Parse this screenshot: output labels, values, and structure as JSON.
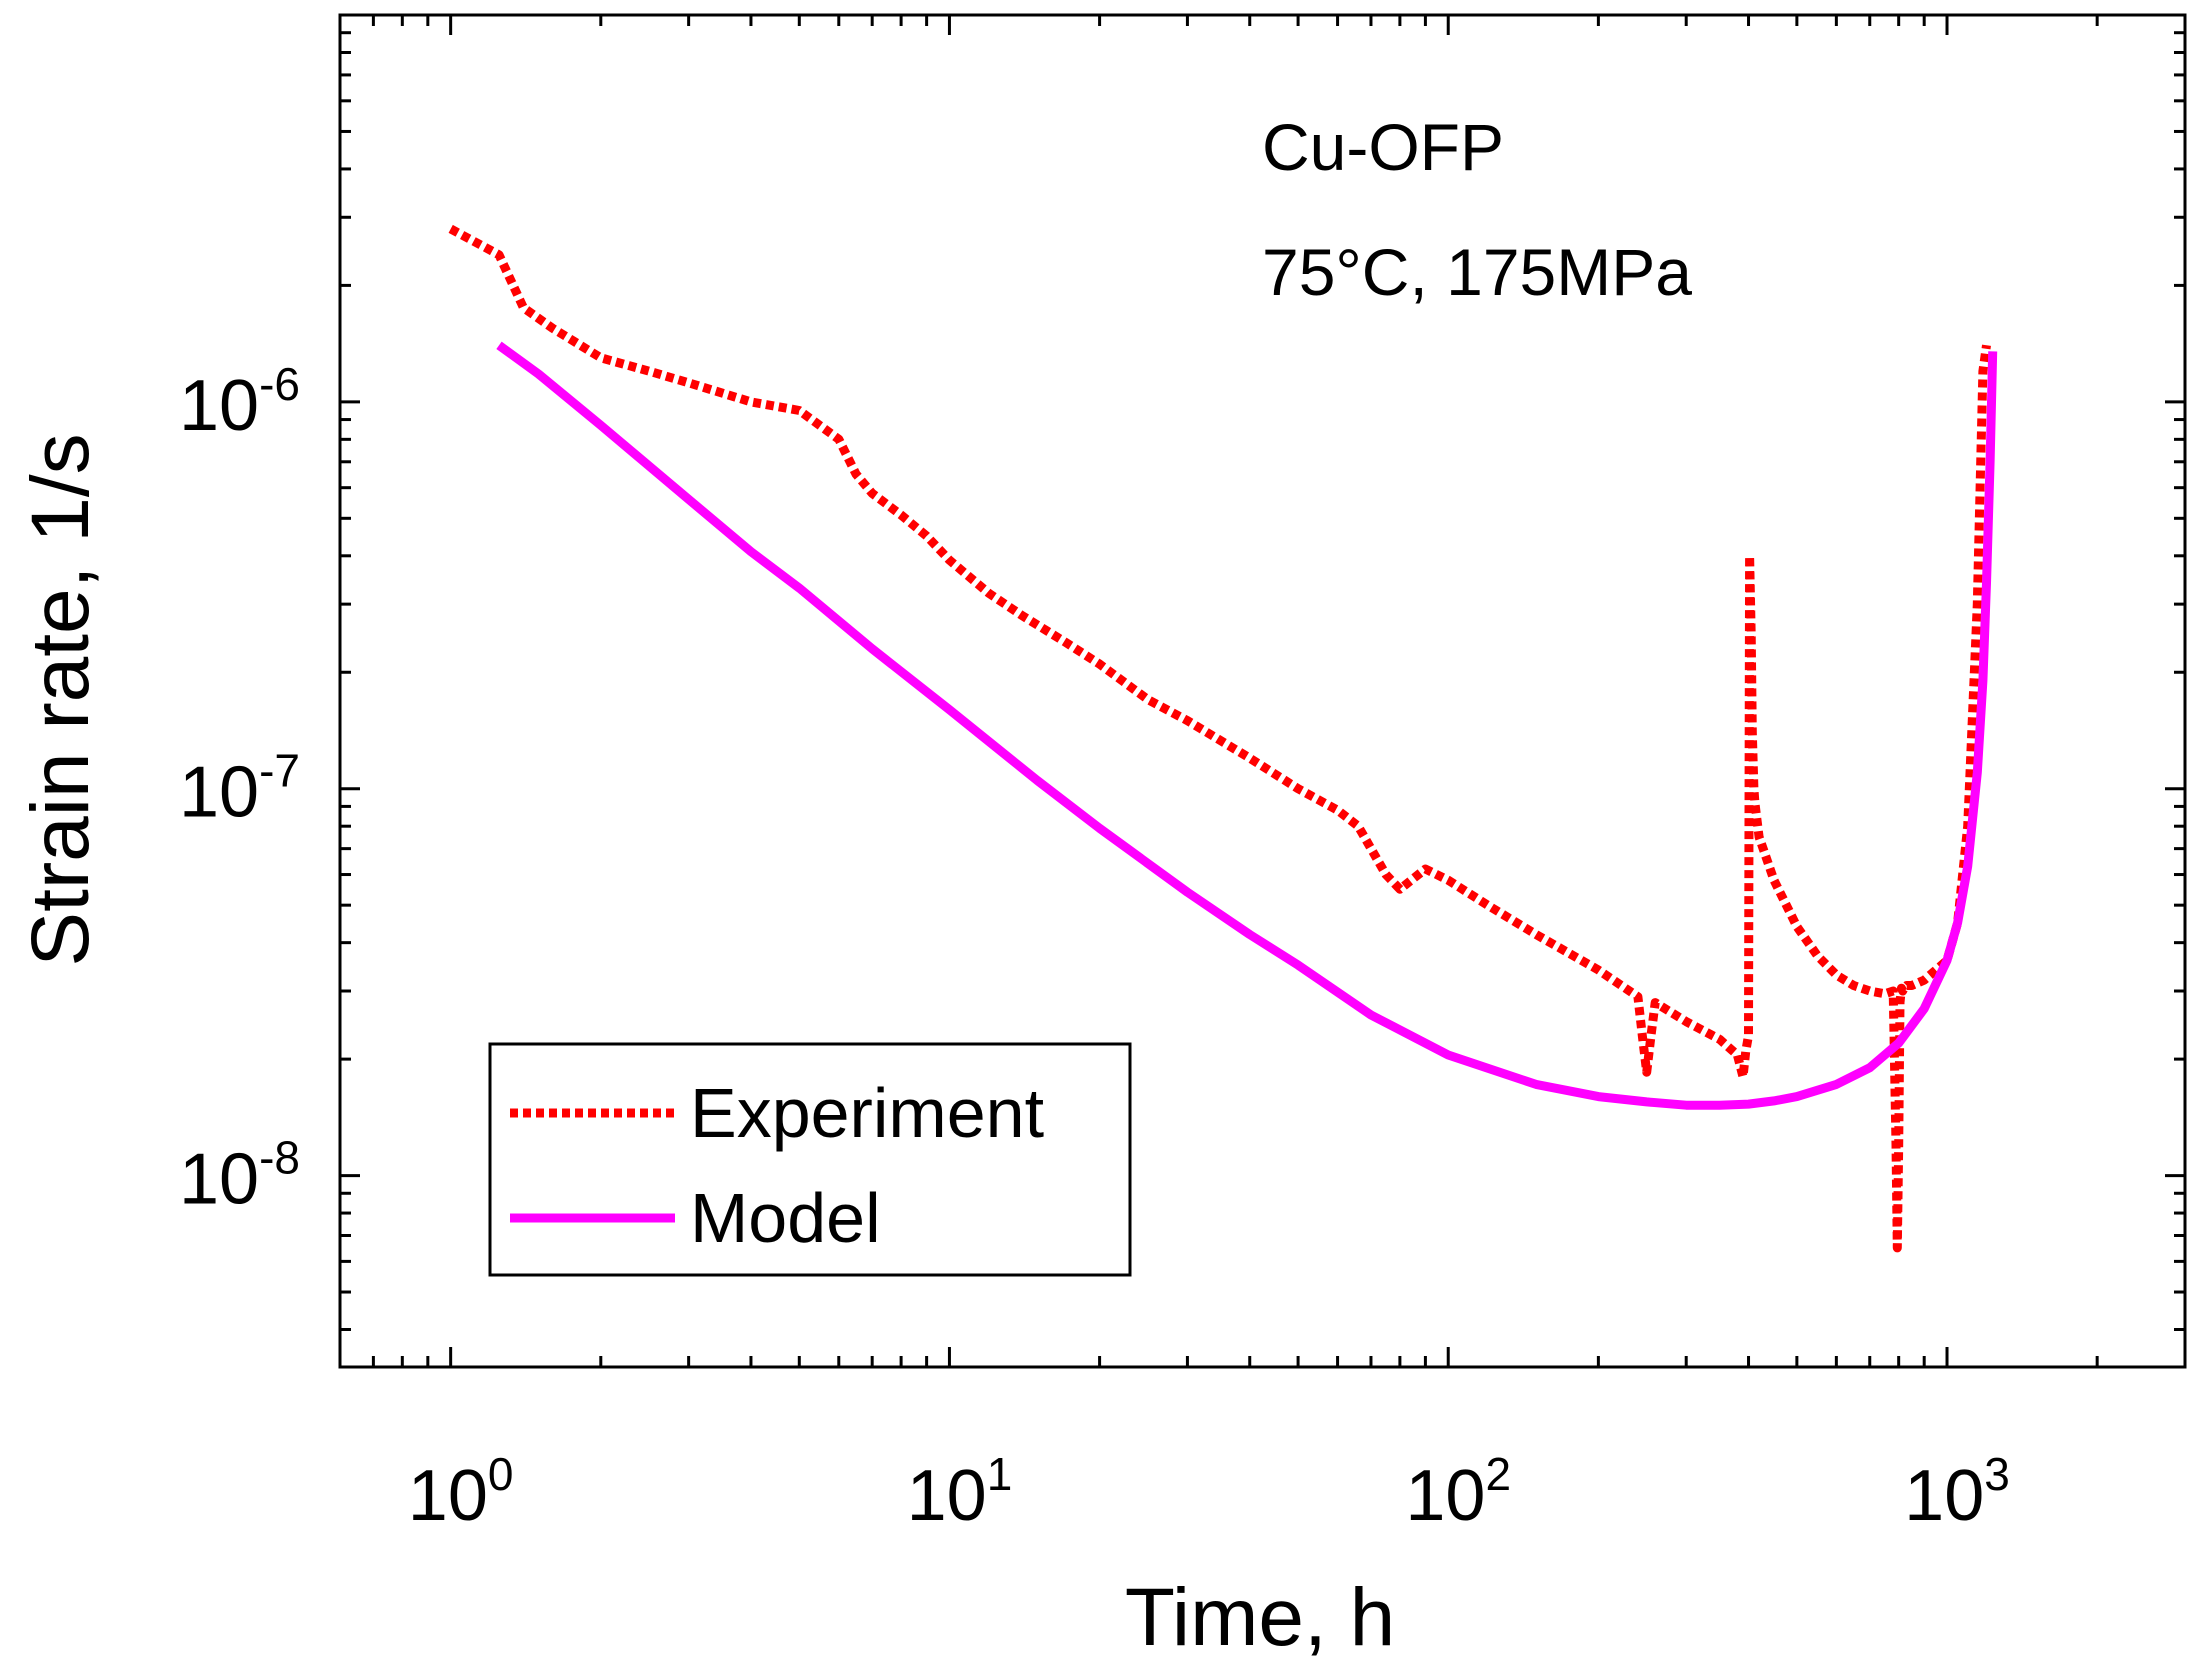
{
  "chart_data": {
    "type": "line",
    "scale": {
      "x": "log",
      "y": "log"
    },
    "xlabel": "Time, h",
    "ylabel": "Strain rate,  1/s",
    "xlim": [
      0.6,
      3000
    ],
    "ylim": [
      3.2e-09,
      1e-05
    ],
    "x_ticks": [
      {
        "value": 1,
        "base": "10",
        "exp": "0"
      },
      {
        "value": 10,
        "base": "10",
        "exp": "1"
      },
      {
        "value": 100,
        "base": "10",
        "exp": "2"
      },
      {
        "value": 1000,
        "base": "10",
        "exp": "3"
      }
    ],
    "y_ticks": [
      {
        "value": 1e-06,
        "base": "10",
        "exp": "-6"
      },
      {
        "value": 1e-07,
        "base": "10",
        "exp": "-7"
      },
      {
        "value": 1e-08,
        "base": "10",
        "exp": "-8"
      }
    ],
    "annotations": [
      "Cu-OFP",
      "75°C, 175MPa"
    ],
    "legend": {
      "position": "bottom-left",
      "entries": [
        "Experiment",
        "Model"
      ]
    },
    "series": [
      {
        "name": "Experiment",
        "color": "#ff0000",
        "style": "dotted",
        "x": [
          1.0,
          1.25,
          1.4,
          1.6,
          2.0,
          2.5,
          3.0,
          4.0,
          5.0,
          6.0,
          6.5,
          7.0,
          8.0,
          9.0,
          10.0,
          12.0,
          14.0,
          17.0,
          20.0,
          25.0,
          30.0,
          40.0,
          50.0,
          60.0,
          66.0,
          70.0,
          75.0,
          80.0,
          90.0,
          100.0,
          120.0,
          150.0,
          200.0,
          240.0,
          245.0,
          250.0,
          255.0,
          260.0,
          300.0,
          350.0,
          380.0,
          390.0,
          395.0,
          400.0,
          402.0,
          405.0,
          407.0,
          410.0,
          412.0,
          415.0,
          420.0,
          450.0,
          500.0,
          550.0,
          600.0,
          650.0,
          700.0,
          750.0,
          780.0,
          790.0,
          795.0,
          800.0,
          805.0,
          810.0,
          815.0,
          820.0,
          830.0,
          850.0,
          900.0,
          950.0,
          1000.0,
          1050.0,
          1100.0,
          1150.0,
          1180.0,
          1200.0
        ],
        "values": [
          2.8e-06,
          2.4e-06,
          1.75e-06,
          1.55e-06,
          1.3e-06,
          1.2e-06,
          1.12e-06,
          1e-06,
          9.5e-07,
          8e-07,
          6.5e-07,
          5.8e-07,
          5.1e-07,
          4.5e-07,
          3.9e-07,
          3.2e-07,
          2.8e-07,
          2.4e-07,
          2.1e-07,
          1.7e-07,
          1.5e-07,
          1.2e-07,
          1e-07,
          8.8e-08,
          8e-08,
          7e-08,
          6e-08,
          5.5e-08,
          6.2e-08,
          5.8e-08,
          5e-08,
          4.2e-08,
          3.4e-08,
          2.9e-08,
          2.3e-08,
          1.85e-08,
          2.3e-08,
          2.8e-08,
          2.5e-08,
          2.25e-08,
          2.05e-08,
          1.8e-08,
          2.1e-08,
          2.3e-08,
          4e-07,
          2.5e-07,
          1.4e-07,
          1e-07,
          9.2e-08,
          8.5e-08,
          7.5e-08,
          5.8e-08,
          4.4e-08,
          3.7e-08,
          3.3e-08,
          3.1e-08,
          3e-08,
          2.95e-08,
          3e-08,
          1.2e-08,
          6.5e-09,
          1.2e-08,
          2.8e-08,
          3.05e-08,
          3e-08,
          3.05e-08,
          3.1e-08,
          3.1e-08,
          3.2e-08,
          3.4e-08,
          3.6e-08,
          4.5e-08,
          8e-08,
          3e-07,
          1.2e-06,
          1.4e-06
        ]
      },
      {
        "name": "Model",
        "color": "#ff00ff",
        "style": "solid",
        "x": [
          1.25,
          1.5,
          2.0,
          3.0,
          4.0,
          5.0,
          7.0,
          10.0,
          15.0,
          20.0,
          30.0,
          40.0,
          50.0,
          70.0,
          100.0,
          150.0,
          200.0,
          250.0,
          300.0,
          350.0,
          400.0,
          450.0,
          500.0,
          600.0,
          700.0,
          800.0,
          900.0,
          1000.0,
          1050.0,
          1100.0,
          1150.0,
          1180.0,
          1200.0,
          1220.0,
          1235.0
        ],
        "values": [
          1.4e-06,
          1.18e-06,
          8.7e-07,
          5.6e-07,
          4.1e-07,
          3.3e-07,
          2.3e-07,
          1.6e-07,
          1.05e-07,
          7.9e-08,
          5.4e-08,
          4.2e-08,
          3.5e-08,
          2.6e-08,
          2.05e-08,
          1.72e-08,
          1.6e-08,
          1.55e-08,
          1.52e-08,
          1.52e-08,
          1.53e-08,
          1.56e-08,
          1.6e-08,
          1.72e-08,
          1.9e-08,
          2.2e-08,
          2.7e-08,
          3.6e-08,
          4.5e-08,
          6.3e-08,
          1.1e-07,
          1.9e-07,
          3.4e-07,
          7e-07,
          1.35e-06
        ]
      }
    ]
  }
}
